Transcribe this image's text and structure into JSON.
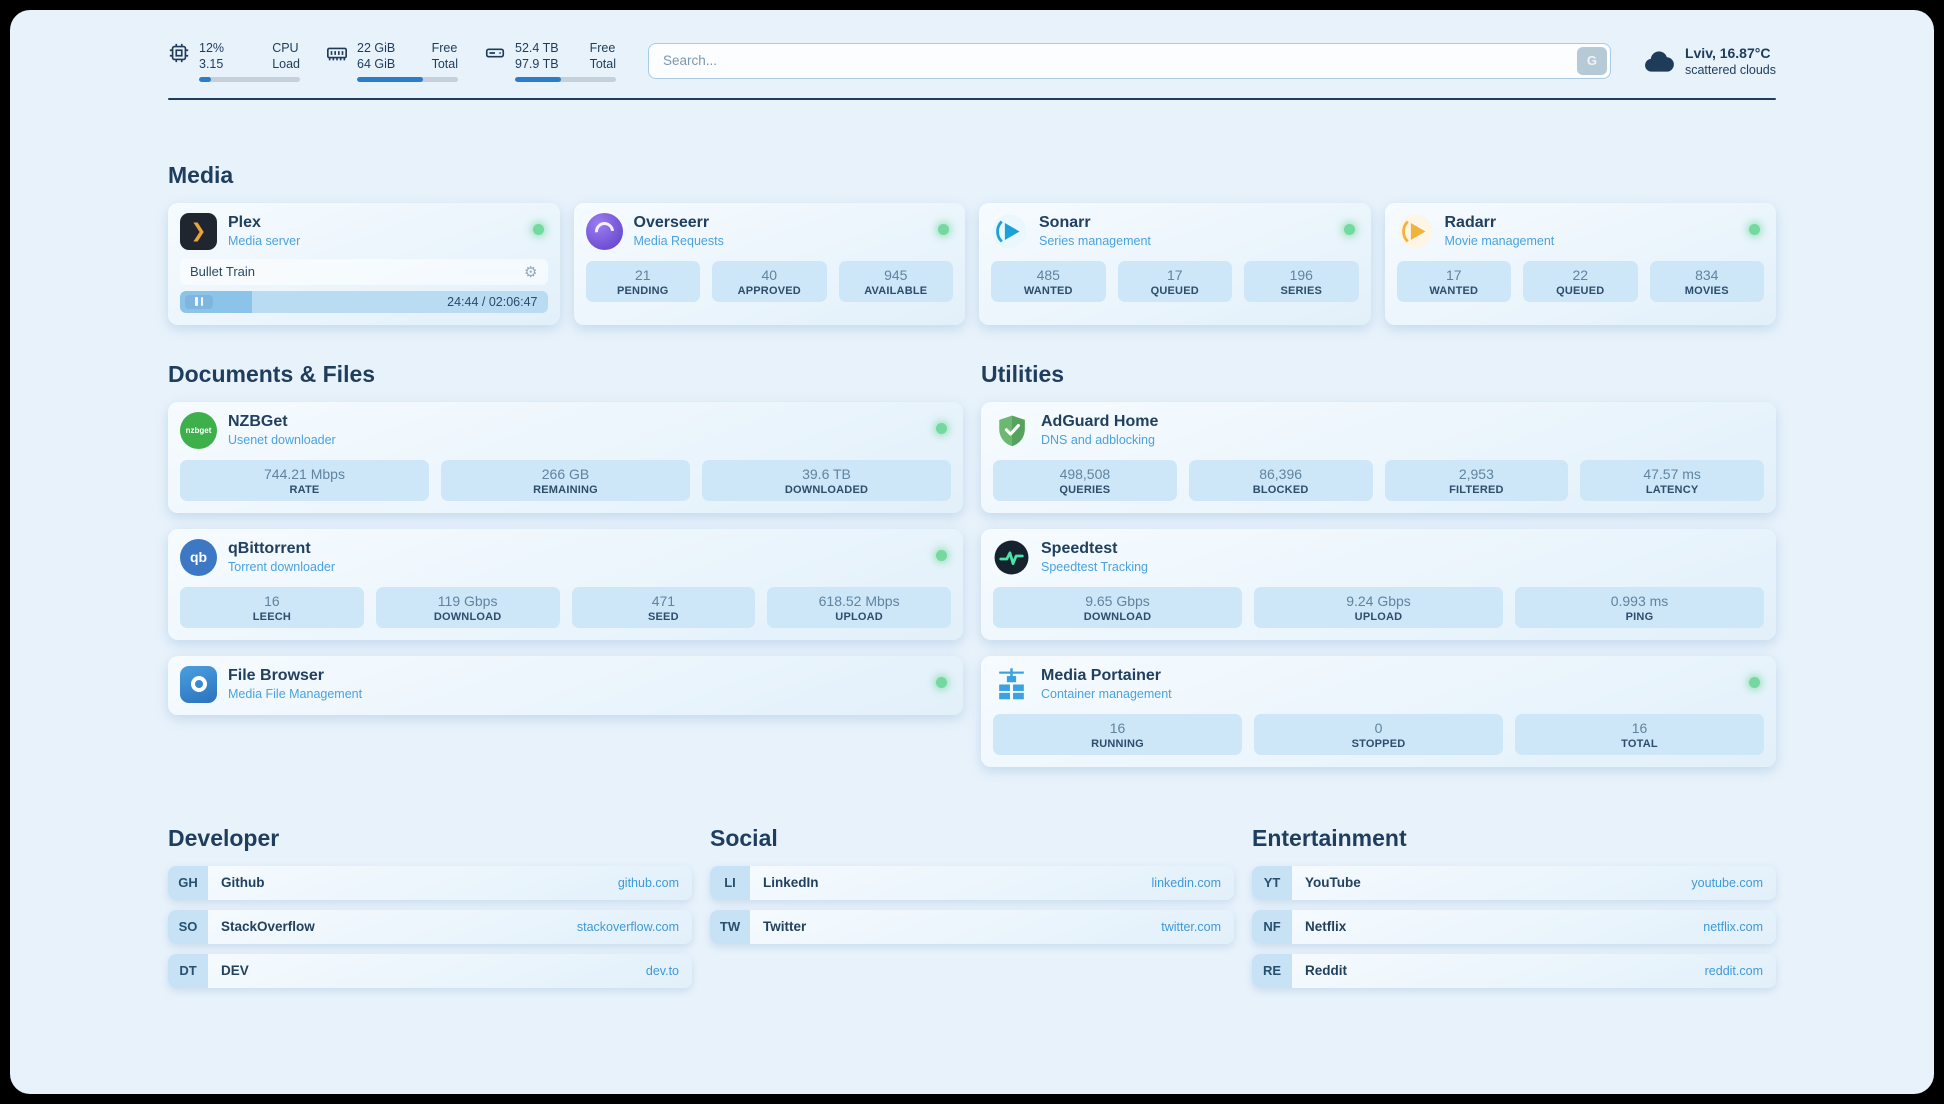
{
  "colors": {
    "background": "#e8f2fb",
    "accent_blue": "#2d7cc9",
    "link_blue": "#3d9ad8",
    "status_green": "#74d99f",
    "stat_tile_bg": "#cde7f8"
  },
  "icons": {
    "gear": "⚙",
    "plex_chevron": "❯",
    "nzbget_label": "nzbget",
    "qbittorrent_label": "qb"
  },
  "header": {
    "cpu": {
      "percent": "12%",
      "load_value": "3.15",
      "label_top": "CPU",
      "label_bottom": "Load",
      "bar_percent": 12
    },
    "ram": {
      "free": "22 GiB",
      "total": "64 GiB",
      "label_top": "Free",
      "label_bottom": "Total",
      "bar_percent": 65
    },
    "disk": {
      "free": "52.4 TB",
      "total": "97.9 TB",
      "label_top": "Free",
      "label_bottom": "Total",
      "bar_percent": 46
    },
    "search": {
      "placeholder": "Search...",
      "button_label": "G"
    },
    "weather": {
      "location": "Lviv, 16.87°C",
      "condition": "scattered clouds"
    }
  },
  "media": {
    "title": "Media",
    "plex": {
      "name": "Plex",
      "subtitle": "Media server",
      "now_playing": "Bullet Train",
      "time": "24:44 / 02:06:47",
      "progress_percent": 19.5
    },
    "overseerr": {
      "name": "Overseerr",
      "subtitle": "Media Requests",
      "stats": [
        {
          "value": "21",
          "label": "PENDING"
        },
        {
          "value": "40",
          "label": "APPROVED"
        },
        {
          "value": "945",
          "label": "AVAILABLE"
        }
      ]
    },
    "sonarr": {
      "name": "Sonarr",
      "subtitle": "Series management",
      "stats": [
        {
          "value": "485",
          "label": "WANTED"
        },
        {
          "value": "17",
          "label": "QUEUED"
        },
        {
          "value": "196",
          "label": "SERIES"
        }
      ]
    },
    "radarr": {
      "name": "Radarr",
      "subtitle": "Movie management",
      "stats": [
        {
          "value": "17",
          "label": "WANTED"
        },
        {
          "value": "22",
          "label": "QUEUED"
        },
        {
          "value": "834",
          "label": "MOVIES"
        }
      ]
    }
  },
  "documents": {
    "title": "Documents & Files",
    "nzbget": {
      "name": "NZBGet",
      "subtitle": "Usenet downloader",
      "stats": [
        {
          "value": "744.21 Mbps",
          "label": "RATE"
        },
        {
          "value": "266 GB",
          "label": "REMAINING"
        },
        {
          "value": "39.6 TB",
          "label": "DOWNLOADED"
        }
      ]
    },
    "qbittorrent": {
      "name": "qBittorrent",
      "subtitle": "Torrent downloader",
      "stats": [
        {
          "value": "16",
          "label": "LEECH"
        },
        {
          "value": "119 Gbps",
          "label": "DOWNLOAD"
        },
        {
          "value": "471",
          "label": "SEED"
        },
        {
          "value": "618.52 Mbps",
          "label": "UPLOAD"
        }
      ]
    },
    "filebrowser": {
      "name": "File Browser",
      "subtitle": "Media File Management"
    }
  },
  "utilities": {
    "title": "Utilities",
    "adguard": {
      "name": "AdGuard Home",
      "subtitle": "DNS and adblocking",
      "stats": [
        {
          "value": "498,508",
          "label": "QUERIES"
        },
        {
          "value": "86,396",
          "label": "BLOCKED"
        },
        {
          "value": "2,953",
          "label": "FILTERED"
        },
        {
          "value": "47.57 ms",
          "label": "LATENCY"
        }
      ]
    },
    "speedtest": {
      "name": "Speedtest",
      "subtitle": "Speedtest Tracking",
      "stats": [
        {
          "value": "9.65 Gbps",
          "label": "DOWNLOAD"
        },
        {
          "value": "9.24 Gbps",
          "label": "UPLOAD"
        },
        {
          "value": "0.993 ms",
          "label": "PING"
        }
      ]
    },
    "portainer": {
      "name": "Media Portainer",
      "subtitle": "Container management",
      "stats": [
        {
          "value": "16",
          "label": "RUNNING"
        },
        {
          "value": "0",
          "label": "STOPPED"
        },
        {
          "value": "16",
          "label": "TOTAL"
        }
      ]
    }
  },
  "bookmarks": {
    "developer": {
      "title": "Developer",
      "links": [
        {
          "abbr": "GH",
          "name": "Github",
          "url": "github.com"
        },
        {
          "abbr": "SO",
          "name": "StackOverflow",
          "url": "stackoverflow.com"
        },
        {
          "abbr": "DT",
          "name": "DEV",
          "url": "dev.to"
        }
      ]
    },
    "social": {
      "title": "Social",
      "links": [
        {
          "abbr": "LI",
          "name": "LinkedIn",
          "url": "linkedin.com"
        },
        {
          "abbr": "TW",
          "name": "Twitter",
          "url": "twitter.com"
        }
      ]
    },
    "entertainment": {
      "title": "Entertainment",
      "links": [
        {
          "abbr": "YT",
          "name": "YouTube",
          "url": "youtube.com"
        },
        {
          "abbr": "NF",
          "name": "Netflix",
          "url": "netflix.com"
        },
        {
          "abbr": "RE",
          "name": "Reddit",
          "url": "reddit.com"
        }
      ]
    }
  }
}
